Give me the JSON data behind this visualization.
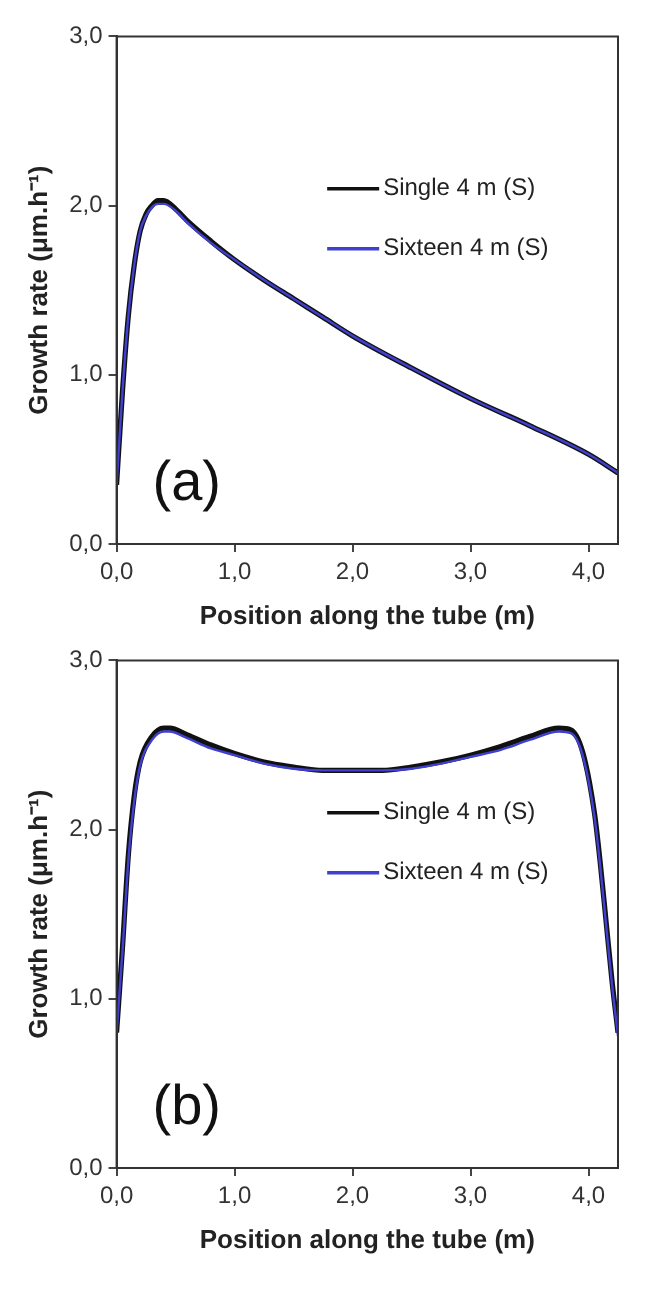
{
  "chart_data": [
    {
      "type": "line",
      "xlabel": "Position along the tube (m)",
      "ylabel": "Growth rate (μm.h⁻¹)",
      "annotations": [
        "(a)"
      ],
      "legend": "right",
      "marker": "none",
      "line_style": "solid",
      "grid": false,
      "xlim": [
        0,
        4.25
      ],
      "xticks": [
        {
          "value": 0,
          "label": "0,0"
        },
        {
          "value": 1,
          "label": "1,0"
        },
        {
          "value": 2,
          "label": "2,0"
        },
        {
          "value": 3,
          "label": "3,0"
        },
        {
          "value": 4,
          "label": "4,0"
        }
      ],
      "ylim": [
        0,
        3
      ],
      "yticks": [
        {
          "value": 0,
          "label": "0,0"
        },
        {
          "value": 1,
          "label": "1,0"
        },
        {
          "value": 2,
          "label": "2,0"
        },
        {
          "value": 3,
          "label": "3,0"
        }
      ],
      "x": [
        0,
        0.05,
        0.1,
        0.15,
        0.2,
        0.25,
        0.3,
        0.35,
        0.4,
        0.5,
        0.6,
        0.8,
        1.0,
        1.25,
        1.5,
        1.75,
        2.0,
        2.5,
        3.0,
        3.5,
        4.0,
        4.25
      ],
      "series": [
        {
          "name": "Single 4 m (S)",
          "color": "#111111",
          "values": [
            0.35,
            0.9,
            1.35,
            1.65,
            1.85,
            1.95,
            2.0,
            2.03,
            2.03,
            1.98,
            1.91,
            1.79,
            1.68,
            1.56,
            1.45,
            1.34,
            1.23,
            1.04,
            0.86,
            0.7,
            0.53,
            0.42
          ]
        },
        {
          "name": "Sixteen 4 m (S)",
          "color": "#4040d0",
          "values": [
            0.35,
            0.9,
            1.35,
            1.65,
            1.85,
            1.94,
            1.99,
            2.01,
            2.01,
            1.97,
            1.9,
            1.78,
            1.68,
            1.56,
            1.45,
            1.34,
            1.23,
            1.04,
            0.86,
            0.7,
            0.53,
            0.42
          ]
        }
      ]
    },
    {
      "type": "line",
      "xlabel": "Position along the tube (m)",
      "ylabel": "Growth rate (μm.h⁻¹)",
      "annotations": [
        "(b)"
      ],
      "legend": "right",
      "marker": "none",
      "line_style": "solid",
      "grid": false,
      "xlim": [
        0,
        4.25
      ],
      "xticks": [
        {
          "value": 0,
          "label": "0,0"
        },
        {
          "value": 1,
          "label": "1,0"
        },
        {
          "value": 2,
          "label": "2,0"
        },
        {
          "value": 3,
          "label": "3,0"
        },
        {
          "value": 4,
          "label": "4,0"
        }
      ],
      "ylim": [
        0,
        3
      ],
      "yticks": [
        {
          "value": 0,
          "label": "0,0"
        },
        {
          "value": 1,
          "label": "1,0"
        },
        {
          "value": 2,
          "label": "2,0"
        },
        {
          "value": 3,
          "label": "3,0"
        }
      ],
      "x": [
        0,
        0.05,
        0.1,
        0.15,
        0.2,
        0.3,
        0.4,
        0.45,
        0.6,
        0.8,
        1.0,
        1.25,
        1.5,
        1.75,
        2.0,
        2.25,
        2.5,
        2.75,
        3.0,
        3.25,
        3.5,
        3.75,
        3.85,
        3.95,
        4.05,
        4.1,
        4.15,
        4.2,
        4.25
      ],
      "series": [
        {
          "name": "Single 4 m (S)",
          "color": "#111111",
          "values": [
            0.8,
            1.3,
            1.85,
            2.2,
            2.4,
            2.55,
            2.6,
            2.6,
            2.56,
            2.5,
            2.45,
            2.4,
            2.37,
            2.35,
            2.35,
            2.35,
            2.37,
            2.4,
            2.44,
            2.49,
            2.55,
            2.6,
            2.59,
            2.46,
            2.1,
            1.8,
            1.45,
            1.1,
            0.8
          ]
        },
        {
          "name": "Sixteen 4 m (S)",
          "color": "#4040d0",
          "values": [
            0.8,
            1.28,
            1.82,
            2.17,
            2.38,
            2.53,
            2.58,
            2.58,
            2.54,
            2.48,
            2.44,
            2.39,
            2.36,
            2.35,
            2.35,
            2.35,
            2.36,
            2.39,
            2.43,
            2.47,
            2.53,
            2.58,
            2.57,
            2.44,
            2.08,
            1.78,
            1.43,
            1.08,
            0.78
          ]
        }
      ]
    }
  ]
}
